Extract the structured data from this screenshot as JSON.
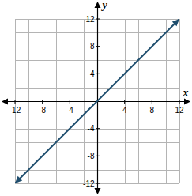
{
  "chart_data": {
    "type": "line",
    "x_label": "x",
    "y_label": "y",
    "xlim": [
      -12,
      12
    ],
    "ylim": [
      -12,
      12
    ],
    "xticks": [
      -12,
      -8,
      -4,
      4,
      8,
      12
    ],
    "yticks": [
      -12,
      -8,
      -4,
      4,
      8,
      12
    ],
    "grid": true,
    "series": [
      {
        "x": [
          -12,
          12
        ],
        "values": [
          -12,
          12
        ],
        "color": "#1f4e6e",
        "marker": "arrow"
      }
    ]
  }
}
